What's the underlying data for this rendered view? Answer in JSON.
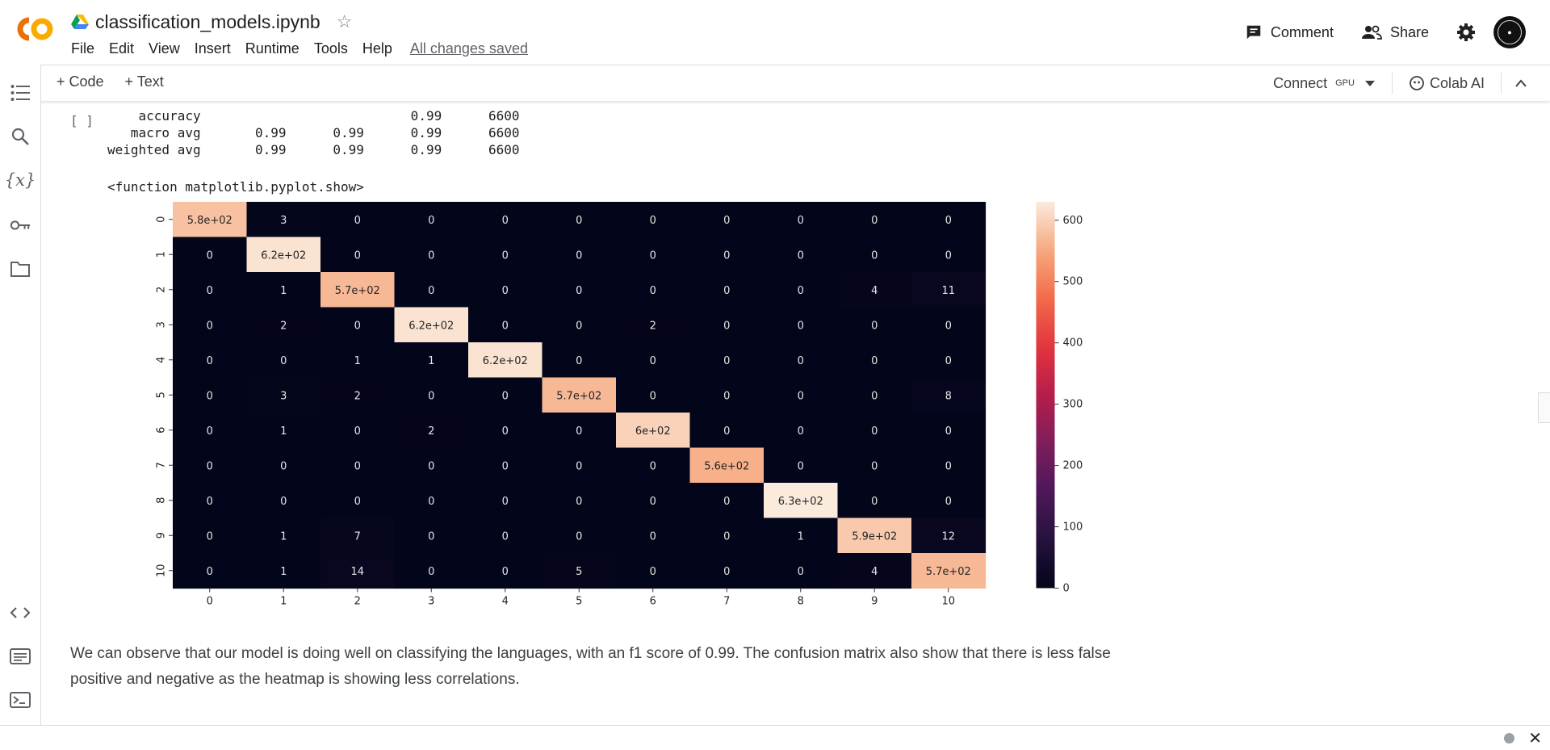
{
  "app": {
    "notebook_title": "classification_models.ipynb",
    "menu": [
      "File",
      "Edit",
      "View",
      "Insert",
      "Runtime",
      "Tools",
      "Help"
    ],
    "save_status": "All changes saved",
    "comment_label": "Comment",
    "share_label": "Share"
  },
  "toolbar": {
    "add_code": "+ Code",
    "add_text": "+ Text",
    "connect_label": "Connect",
    "runtime_type": "GPU",
    "colab_ai_label": "Colab AI"
  },
  "cell": {
    "exec_marker": "[ ]",
    "report_rows": [
      "    accuracy                           0.99      6600",
      "   macro avg       0.99      0.99      0.99      6600",
      "weighted avg       0.99      0.99      0.99      6600"
    ],
    "func_output": "<function matplotlib.pyplot.show>"
  },
  "chart_data": {
    "type": "heatmap",
    "x_ticks": [
      "0",
      "1",
      "2",
      "3",
      "4",
      "5",
      "6",
      "7",
      "8",
      "9",
      "10"
    ],
    "y_ticks": [
      "0",
      "1",
      "2",
      "3",
      "4",
      "5",
      "6",
      "7",
      "8",
      "9",
      "10"
    ],
    "values": [
      [
        580,
        3,
        0,
        0,
        0,
        0,
        0,
        0,
        0,
        0,
        0
      ],
      [
        0,
        620,
        0,
        0,
        0,
        0,
        0,
        0,
        0,
        0,
        0
      ],
      [
        0,
        1,
        570,
        0,
        0,
        0,
        0,
        0,
        0,
        4,
        11
      ],
      [
        0,
        2,
        0,
        620,
        0,
        0,
        2,
        0,
        0,
        0,
        0
      ],
      [
        0,
        0,
        1,
        1,
        620,
        0,
        0,
        0,
        0,
        0,
        0
      ],
      [
        0,
        3,
        2,
        0,
        0,
        570,
        0,
        0,
        0,
        0,
        8
      ],
      [
        0,
        1,
        0,
        2,
        0,
        0,
        600,
        0,
        0,
        0,
        0
      ],
      [
        0,
        0,
        0,
        0,
        0,
        0,
        0,
        560,
        0,
        0,
        0
      ],
      [
        0,
        0,
        0,
        0,
        0,
        0,
        0,
        0,
        630,
        0,
        0
      ],
      [
        0,
        1,
        7,
        0,
        0,
        0,
        0,
        0,
        1,
        590,
        12
      ],
      [
        0,
        1,
        14,
        0,
        0,
        5,
        0,
        0,
        0,
        4,
        570
      ]
    ],
    "labels": [
      [
        "5.8e+02",
        "3",
        "0",
        "0",
        "0",
        "0",
        "0",
        "0",
        "0",
        "0",
        "0"
      ],
      [
        "0",
        "6.2e+02",
        "0",
        "0",
        "0",
        "0",
        "0",
        "0",
        "0",
        "0",
        "0"
      ],
      [
        "0",
        "1",
        "5.7e+02",
        "0",
        "0",
        "0",
        "0",
        "0",
        "0",
        "4",
        "11"
      ],
      [
        "0",
        "2",
        "0",
        "6.2e+02",
        "0",
        "0",
        "2",
        "0",
        "0",
        "0",
        "0"
      ],
      [
        "0",
        "0",
        "1",
        "1",
        "6.2e+02",
        "0",
        "0",
        "0",
        "0",
        "0",
        "0"
      ],
      [
        "0",
        "3",
        "2",
        "0",
        "0",
        "5.7e+02",
        "0",
        "0",
        "0",
        "0",
        "8"
      ],
      [
        "0",
        "1",
        "0",
        "2",
        "0",
        "0",
        "6e+02",
        "0",
        "0",
        "0",
        "0"
      ],
      [
        "0",
        "0",
        "0",
        "0",
        "0",
        "0",
        "0",
        "5.6e+02",
        "0",
        "0",
        "0"
      ],
      [
        "0",
        "0",
        "0",
        "0",
        "0",
        "0",
        "0",
        "0",
        "6.3e+02",
        "0",
        "0"
      ],
      [
        "0",
        "1",
        "7",
        "0",
        "0",
        "0",
        "0",
        "0",
        "1",
        "5.9e+02",
        "12"
      ],
      [
        "0",
        "1",
        "14",
        "0",
        "0",
        "5",
        "0",
        "0",
        "0",
        "4",
        "5.7e+02"
      ]
    ],
    "colorbar_ticks": [
      "0",
      "100",
      "200",
      "300",
      "400",
      "500",
      "600"
    ],
    "vmin": 0,
    "vmax": 630,
    "colormap": "rocket"
  },
  "markdown": {
    "text": "We can observe that our model is doing well on classifying the languages, with an f1 score of 0.99. The confusion matrix also show that there is less false positive and negative as the heatmap is showing less correlations."
  },
  "colors": {
    "logo_orange": "#F9AB00",
    "logo_orange_dark": "#E8710A",
    "text": "#202124",
    "muted": "#5f6368",
    "border": "#dadce0"
  }
}
